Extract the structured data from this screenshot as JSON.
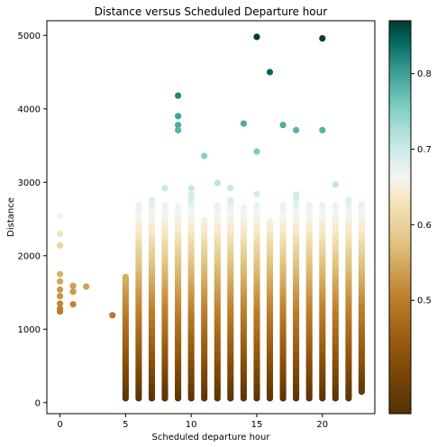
{
  "chart_data": {
    "type": "scatter",
    "title": "Distance versus Scheduled Departure hour",
    "xlabel": "Scheduled departure hour",
    "ylabel": "Distance",
    "xlim": [
      -1,
      24
    ],
    "ylim": [
      -150,
      5200
    ],
    "xticks": [
      0,
      5,
      10,
      15,
      20
    ],
    "yticks": [
      0,
      1000,
      2000,
      3000,
      4000,
      5000
    ],
    "grid": false,
    "colormap": "BrBG",
    "colorbar": {
      "range": [
        0.35,
        0.87
      ],
      "ticks": [
        "0.5",
        "0.6",
        "0.7",
        "0.8"
      ],
      "tick_values": [
        0.5,
        0.6,
        0.7,
        0.8
      ]
    },
    "colors": {
      "low": "#543005",
      "mid_low": "#bf812d",
      "neutral": "#f5f5f5",
      "mid_high": "#80cdc1",
      "high": "#003c30"
    },
    "columns": [
      {
        "hour": 5,
        "min": 60,
        "max": 1730
      },
      {
        "hour": 6,
        "min": 60,
        "max": 2700
      },
      {
        "hour": 7,
        "min": 60,
        "max": 2760
      },
      {
        "hour": 8,
        "min": 60,
        "max": 2700
      },
      {
        "hour": 9,
        "min": 60,
        "max": 2680
      },
      {
        "hour": 10,
        "min": 60,
        "max": 2850
      },
      {
        "hour": 11,
        "min": 60,
        "max": 2500
      },
      {
        "hour": 12,
        "min": 60,
        "max": 2690
      },
      {
        "hour": 13,
        "min": 60,
        "max": 2760
      },
      {
        "hour": 14,
        "min": 60,
        "max": 2680
      },
      {
        "hour": 15,
        "min": 60,
        "max": 2700
      },
      {
        "hour": 16,
        "min": 60,
        "max": 2480
      },
      {
        "hour": 17,
        "min": 60,
        "max": 2700
      },
      {
        "hour": 18,
        "min": 60,
        "max": 2850
      },
      {
        "hour": 19,
        "min": 60,
        "max": 2700
      },
      {
        "hour": 20,
        "min": 60,
        "max": 2700
      },
      {
        "hour": 21,
        "min": 60,
        "max": 2700
      },
      {
        "hour": 22,
        "min": 60,
        "max": 2760
      },
      {
        "hour": 23,
        "min": 150,
        "max": 2720
      }
    ],
    "points": [
      {
        "x": 0,
        "y": 2540
      },
      {
        "x": 0,
        "y": 2300
      },
      {
        "x": 0,
        "y": 2140
      },
      {
        "x": 0,
        "y": 1750
      },
      {
        "x": 0,
        "y": 1650
      },
      {
        "x": 0,
        "y": 1540
      },
      {
        "x": 0,
        "y": 1450
      },
      {
        "x": 0,
        "y": 1350
      },
      {
        "x": 0,
        "y": 1280
      },
      {
        "x": 0,
        "y": 1240
      },
      {
        "x": 1,
        "y": 1590
      },
      {
        "x": 1,
        "y": 1510
      },
      {
        "x": 1,
        "y": 1340
      },
      {
        "x": 2,
        "y": 1580
      },
      {
        "x": 4,
        "y": 1190
      },
      {
        "x": 8,
        "y": 2920
      },
      {
        "x": 9,
        "y": 4180
      },
      {
        "x": 9,
        "y": 3900
      },
      {
        "x": 9,
        "y": 3780
      },
      {
        "x": 9,
        "y": 3710
      },
      {
        "x": 10,
        "y": 2920
      },
      {
        "x": 11,
        "y": 3360
      },
      {
        "x": 12,
        "y": 2990
      },
      {
        "x": 13,
        "y": 2920
      },
      {
        "x": 14,
        "y": 3800
      },
      {
        "x": 15,
        "y": 4980
      },
      {
        "x": 15,
        "y": 3420
      },
      {
        "x": 15,
        "y": 2840
      },
      {
        "x": 16,
        "y": 4500
      },
      {
        "x": 17,
        "y": 3780
      },
      {
        "x": 18,
        "y": 3710
      },
      {
        "x": 20,
        "y": 4960
      },
      {
        "x": 20,
        "y": 3710
      },
      {
        "x": 21,
        "y": 2970
      },
      {
        "x": 23,
        "y": 1390
      },
      {
        "x": 23,
        "y": 1290
      },
      {
        "x": 23,
        "y": 1200
      },
      {
        "x": 23,
        "y": 1050
      },
      {
        "x": 23,
        "y": 980
      },
      {
        "x": 23,
        "y": 930
      },
      {
        "x": 23,
        "y": 840
      },
      {
        "x": 23,
        "y": 320
      },
      {
        "x": 23,
        "y": 250
      },
      {
        "x": 23,
        "y": 200
      }
    ]
  }
}
